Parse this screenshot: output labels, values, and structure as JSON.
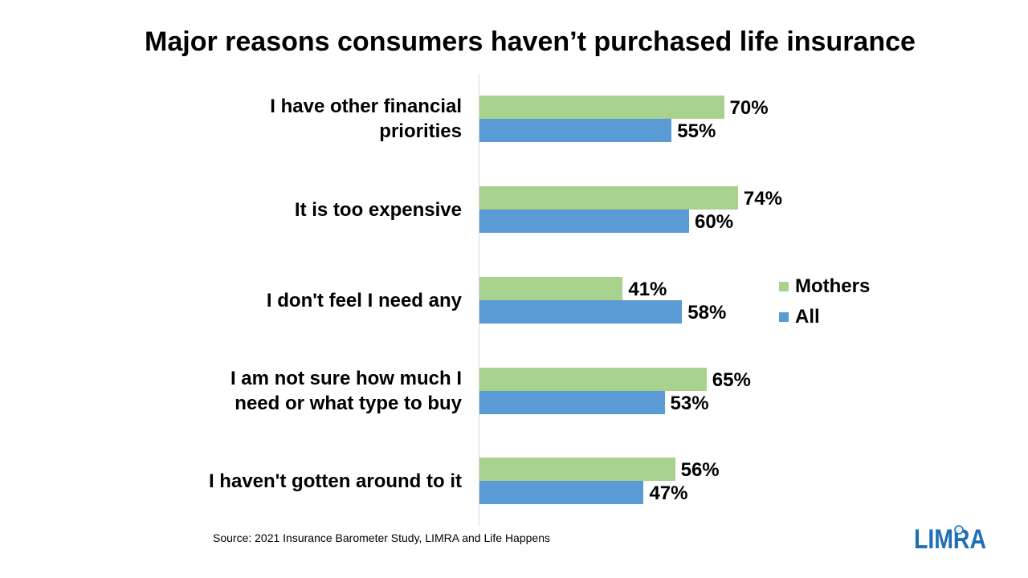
{
  "chart_data": {
    "type": "bar",
    "orientation": "horizontal",
    "title": "Major reasons consumers haven’t purchased life insurance",
    "categories": [
      [
        "I have other financial",
        "priorities"
      ],
      [
        "It is too expensive"
      ],
      [
        "I don't feel I need any"
      ],
      [
        "I am not sure how much I",
        "need or what type to buy"
      ],
      [
        "I haven't gotten around to it"
      ]
    ],
    "series": [
      {
        "name": "Mothers",
        "values": [
          70,
          74,
          41,
          65,
          56
        ],
        "labels": [
          "70%",
          "74%",
          "41%",
          "65%",
          "56%"
        ],
        "color": "#a9d18e"
      },
      {
        "name": "All",
        "values": [
          55,
          60,
          58,
          53,
          47
        ],
        "labels": [
          "55%",
          "60%",
          "58%",
          "53%",
          "47%"
        ],
        "color": "#5b9bd5"
      }
    ],
    "xlim": [
      0,
      100
    ],
    "grid": false,
    "legend_position": "right"
  },
  "source": "Source: 2021 Insurance Barometer Study, LIMRA  and Life Happens",
  "logo": {
    "text": "LIMRA",
    "color": "#1e6fb5"
  }
}
